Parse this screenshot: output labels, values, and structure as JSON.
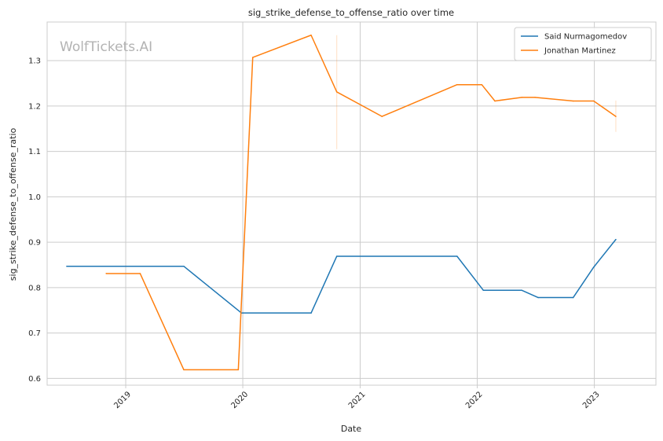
{
  "chart_data": {
    "type": "line",
    "title": "sig_strike_defense_to_offense_ratio over time",
    "xlabel": "Date",
    "ylabel": "sig_strike_defense_to_offense_ratio",
    "watermark": "WolfTickets.AI",
    "xlim": [
      "2018-05-01",
      "2023-07-12"
    ],
    "ylim": [
      0.585,
      1.385
    ],
    "x_ticks": [
      "2019",
      "2020",
      "2021",
      "2022",
      "2023"
    ],
    "y_ticks": [
      "0.6",
      "0.7",
      "0.8",
      "0.9",
      "1.0",
      "1.1",
      "1.2",
      "1.3"
    ],
    "grid": true,
    "legend_position": "top-right",
    "series": [
      {
        "name": "Said Nurmagomedov",
        "color": "#1f77b4",
        "points": [
          {
            "date": "2018-07-01",
            "y": 0.847
          },
          {
            "date": "2019-07-01",
            "y": 0.847
          },
          {
            "date": "2019-12-28",
            "y": 0.744
          },
          {
            "date": "2020-08-01",
            "y": 0.744
          },
          {
            "date": "2020-10-20",
            "y": 0.869
          },
          {
            "date": "2021-10-30",
            "y": 0.869
          },
          {
            "date": "2022-01-20",
            "y": 0.794
          },
          {
            "date": "2022-05-20",
            "y": 0.794
          },
          {
            "date": "2022-07-10",
            "y": 0.778
          },
          {
            "date": "2022-10-27",
            "y": 0.778
          },
          {
            "date": "2022-12-30",
            "y": 0.845
          },
          {
            "date": "2023-03-09",
            "y": 0.906
          }
        ]
      },
      {
        "name": "Jonathan Martinez",
        "color": "#ff7f0e",
        "points": [
          {
            "date": "2018-11-01",
            "y": 0.831
          },
          {
            "date": "2019-02-15",
            "y": 0.831
          },
          {
            "date": "2019-07-01",
            "y": 0.619
          },
          {
            "date": "2019-12-18",
            "y": 0.619
          },
          {
            "date": "2020-02-01",
            "y": 1.307
          },
          {
            "date": "2020-08-01",
            "y": 1.356
          },
          {
            "date": "2020-10-20",
            "y": 1.231
          },
          {
            "date": "2021-03-10",
            "y": 1.177
          },
          {
            "date": "2021-10-30",
            "y": 1.247
          },
          {
            "date": "2022-01-15",
            "y": 1.247
          },
          {
            "date": "2022-02-25",
            "y": 1.211
          },
          {
            "date": "2022-05-20",
            "y": 1.219
          },
          {
            "date": "2022-06-30",
            "y": 1.219
          },
          {
            "date": "2022-10-27",
            "y": 1.211
          },
          {
            "date": "2022-12-30",
            "y": 1.211
          },
          {
            "date": "2023-03-09",
            "y": 1.177
          }
        ],
        "uncertainty_bands": [
          {
            "date": "2020-10-20",
            "low": 1.105,
            "high": 1.356
          },
          {
            "date": "2023-03-09",
            "low": 1.143,
            "high": 1.212
          }
        ]
      }
    ]
  }
}
